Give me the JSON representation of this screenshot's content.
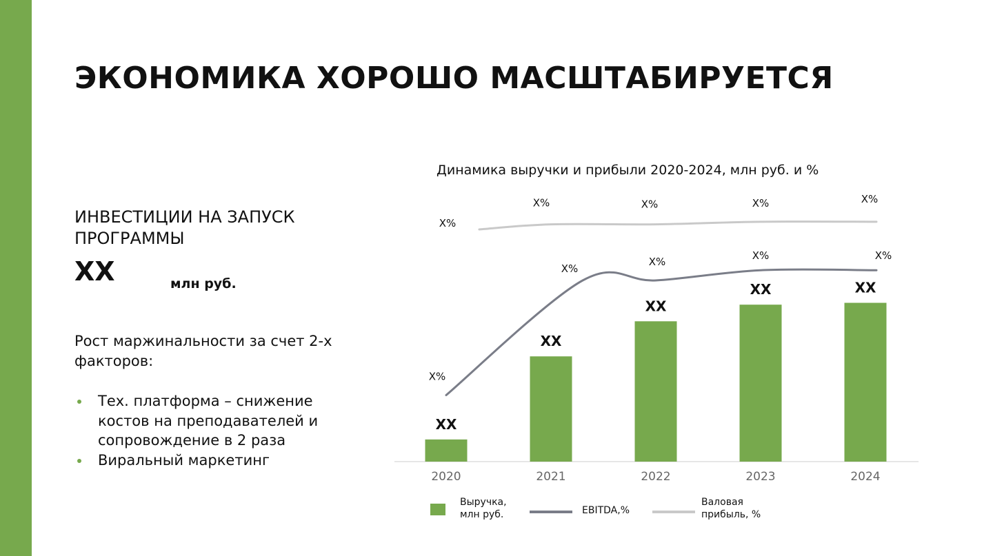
{
  "colors": {
    "accent": "#77a94d",
    "ebitda": "#7a7d88",
    "gross": "#c9c9c9",
    "axis": "#dddddd"
  },
  "slide": {
    "title": "ЭКОНОМИКА ХОРОШО МАСШТАБИРУЕТСЯ",
    "investment": {
      "label": "ИНВЕСТИЦИИ НА ЗАПУСК ПРОГРАММЫ",
      "value": "XX",
      "unit": "млн руб."
    },
    "growth_text": "Рост маржинальности за счет 2-х факторов:",
    "factors": [
      "Тех. платформа – снижение костов на преподавателей и сопровождение в 2 раза",
      "Виральный маркетинг"
    ]
  },
  "chart_data": {
    "type": "bar",
    "title": "Динамика выручки и прибыли 2020-2024, млн руб. и %",
    "categories": [
      "2020",
      "2021",
      "2022",
      "2023",
      "2024"
    ],
    "bar_series": {
      "name": "Выручка, млн руб.",
      "values": [
        12,
        57,
        76,
        85,
        86
      ],
      "labels": [
        "XX",
        "XX",
        "XX",
        "XX",
        "XX"
      ]
    },
    "line_series": [
      {
        "name": "EBITDA,%",
        "values": [
          -5,
          40,
          40,
          44,
          44
        ],
        "labels": [
          "X%",
          "X%",
          "X%",
          "X%",
          "X%"
        ]
      },
      {
        "name": "Валовая прибыль, %",
        "values": [
          60,
          62,
          62,
          63,
          63
        ],
        "labels": [
          "X%",
          "X%",
          "X%",
          "X%",
          "X%"
        ]
      }
    ],
    "legend": [
      {
        "key": "revenue",
        "lines": [
          "Выручка,",
          "млн руб."
        ]
      },
      {
        "key": "ebitda",
        "lines": [
          "EBITDA,%"
        ]
      },
      {
        "key": "gross",
        "lines": [
          "Валовая",
          "прибыль, %"
        ]
      }
    ],
    "legend_position": "bottom",
    "grid": false
  }
}
